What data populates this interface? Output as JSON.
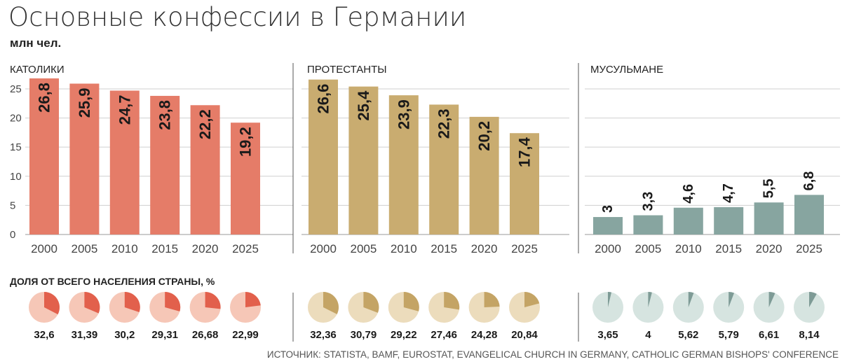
{
  "title": "Основные конфессии в Германии",
  "subtitle": "млн чел.",
  "section_label": "ДОЛЯ ОТ ВСЕГО НАСЕЛЕНИЯ СТРАНЫ, %",
  "source": "ИСТОЧНИК: STATISTA, BAMF, EUROSTAT, EVANGELICAL CHURCH IN GERMANY, CATHOLIC GERMAN BISHOPS' CONFERENCE",
  "chart_data": {
    "type": "bar",
    "categories": [
      "2000",
      "2005",
      "2010",
      "2015",
      "2020",
      "2025"
    ],
    "yticks": [
      0,
      5,
      10,
      15,
      20,
      25
    ],
    "ylim": [
      0,
      28
    ],
    "grid": true,
    "series": [
      {
        "name": "КАТОЛИКИ",
        "values": [
          26.8,
          25.9,
          24.7,
          23.8,
          22.2,
          19.2
        ],
        "labels": [
          "26,8",
          "25,9",
          "24,7",
          "23,8",
          "22,2",
          "19,2"
        ],
        "color": "#e57c68",
        "share": [
          32.6,
          31.39,
          30.2,
          29.31,
          26.68,
          22.99
        ],
        "share_labels": [
          "32,6",
          "31,39",
          "30,2",
          "29,31",
          "26,68",
          "22,99"
        ],
        "pie_color": "#e2604c",
        "pie_bg": "#f6c7b7"
      },
      {
        "name": "ПРОТЕСТАНТЫ",
        "values": [
          26.6,
          25.4,
          23.9,
          22.3,
          20.2,
          17.4
        ],
        "labels": [
          "26,6",
          "25,4",
          "23,9",
          "22,3",
          "20,2",
          "17,4"
        ],
        "color": "#c9ac70",
        "share": [
          32.36,
          30.79,
          29.22,
          27.46,
          24.28,
          20.84
        ],
        "share_labels": [
          "32,36",
          "30,79",
          "29,22",
          "27,46",
          "24,28",
          "20,84"
        ],
        "pie_color": "#c4a465",
        "pie_bg": "#ecdcbc"
      },
      {
        "name": "МУСУЛЬМАНЕ",
        "values": [
          3,
          3.3,
          4.6,
          4.7,
          5.5,
          6.8
        ],
        "labels": [
          "3",
          "3,3",
          "4,6",
          "4,7",
          "5,5",
          "6,8"
        ],
        "color": "#87a5a0",
        "share": [
          3.65,
          4,
          5.62,
          5.79,
          6.61,
          8.14
        ],
        "share_labels": [
          "3,65",
          "4",
          "5,62",
          "5,79",
          "6,61",
          "8,14"
        ],
        "pie_color": "#7e9b96",
        "pie_bg": "#d6e4e0"
      }
    ]
  }
}
